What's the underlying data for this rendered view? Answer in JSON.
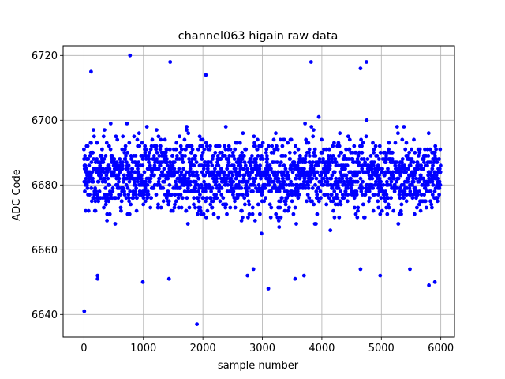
{
  "chart_data": {
    "type": "scatter",
    "title": "channel063 higain raw data",
    "xlabel": "sample number",
    "ylabel": "ADC Code",
    "xlim": [
      -350,
      6230
    ],
    "ylim": [
      6633,
      6723
    ],
    "xticks": [
      0,
      1000,
      2000,
      3000,
      4000,
      5000,
      6000
    ],
    "yticks": [
      6640,
      6660,
      6680,
      6700,
      6720
    ],
    "xtick_labels": [
      "0",
      "1000",
      "2000",
      "3000",
      "4000",
      "5000",
      "6000"
    ],
    "ytick_labels": [
      "6640",
      "6660",
      "6680",
      "6700",
      "6720"
    ],
    "grid": true,
    "marker_color": "#0000ff",
    "series": [
      {
        "n_samples": 6000,
        "central_range": [
          6666,
          6700
        ],
        "outliers": [
          {
            "x": 5,
            "y": 6641
          },
          {
            "x": 775,
            "y": 6720
          },
          {
            "x": 1900,
            "y": 6637
          },
          {
            "x": 3820,
            "y": 6718
          },
          {
            "x": 4750,
            "y": 6718
          },
          {
            "x": 1450,
            "y": 6718
          },
          {
            "x": 2050,
            "y": 6714
          },
          {
            "x": 120,
            "y": 6715
          },
          {
            "x": 3100,
            "y": 6648
          },
          {
            "x": 990,
            "y": 6650
          },
          {
            "x": 5900,
            "y": 6650
          },
          {
            "x": 5800,
            "y": 6649
          },
          {
            "x": 230,
            "y": 6652
          },
          {
            "x": 230,
            "y": 6651
          },
          {
            "x": 1430,
            "y": 6651
          },
          {
            "x": 3550,
            "y": 6651
          },
          {
            "x": 4650,
            "y": 6654
          },
          {
            "x": 2750,
            "y": 6652
          },
          {
            "x": 2850,
            "y": 6654
          },
          {
            "x": 3700,
            "y": 6652
          },
          {
            "x": 4650,
            "y": 6716
          },
          {
            "x": 4980,
            "y": 6652
          },
          {
            "x": 5480,
            "y": 6654
          }
        ]
      }
    ]
  }
}
